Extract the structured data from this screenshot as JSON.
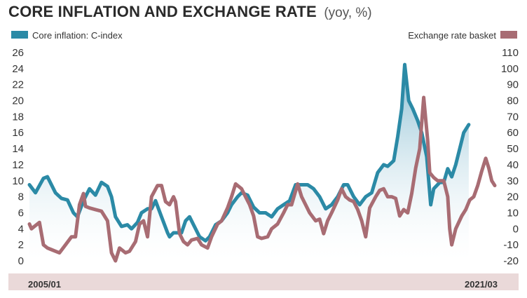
{
  "title": {
    "main": "CORE INFLATION AND EXCHANGE RATE",
    "unit": "(yoy, %)"
  },
  "colors": {
    "core": "#2b8aa6",
    "fx": "#a86c73",
    "area": "#a9d0e0",
    "xband": "#ead9d9"
  },
  "chart_data": {
    "type": "line",
    "title": "CORE INFLATION AND EXCHANGE RATE",
    "subtitle": "(yoy, %)",
    "x_range": [
      "2005/01",
      "2021/03"
    ],
    "x_tick_labels": [
      "2005/01",
      "2021/03"
    ],
    "left_axis": {
      "ylim": [
        0,
        26
      ],
      "ticks": [
        0,
        2,
        4,
        6,
        8,
        10,
        12,
        14,
        16,
        18,
        20,
        22,
        24,
        26
      ]
    },
    "right_axis": {
      "ylim": [
        -20,
        110
      ],
      "ticks": [
        -20,
        -10,
        0,
        10,
        20,
        30,
        40,
        50,
        60,
        70,
        80,
        90,
        100,
        110
      ]
    },
    "legend": [
      {
        "name": "Core inflation: C-index",
        "placement": "top-left"
      },
      {
        "name": "Exchange rate basket",
        "placement": "top-right"
      }
    ],
    "series": [
      {
        "name": "Core inflation: C-index",
        "axis": "left",
        "style": "line with shaded area",
        "points": [
          [
            2005.0,
            9.5
          ],
          [
            2005.3,
            8.5
          ],
          [
            2005.7,
            10.3
          ],
          [
            2005.9,
            10.5
          ],
          [
            2006.3,
            8.5
          ],
          [
            2006.6,
            7.8
          ],
          [
            2006.9,
            7.6
          ],
          [
            2007.2,
            6.0
          ],
          [
            2007.4,
            5.5
          ],
          [
            2007.7,
            7.5
          ],
          [
            2008.0,
            9.0
          ],
          [
            2008.3,
            8.2
          ],
          [
            2008.6,
            9.8
          ],
          [
            2008.9,
            9.3
          ],
          [
            2009.1,
            8.0
          ],
          [
            2009.3,
            5.5
          ],
          [
            2009.6,
            4.3
          ],
          [
            2009.9,
            4.5
          ],
          [
            2010.1,
            4.0
          ],
          [
            2010.4,
            4.8
          ],
          [
            2010.6,
            6.0
          ],
          [
            2010.9,
            6.5
          ],
          [
            2011.1,
            6.5
          ],
          [
            2011.3,
            7.5
          ],
          [
            2011.6,
            5.5
          ],
          [
            2011.9,
            3.5
          ],
          [
            2012.0,
            3.0
          ],
          [
            2012.2,
            3.5
          ],
          [
            2012.4,
            3.5
          ],
          [
            2012.6,
            3.5
          ],
          [
            2012.8,
            5.0
          ],
          [
            2013.0,
            5.5
          ],
          [
            2013.2,
            4.5
          ],
          [
            2013.5,
            3.0
          ],
          [
            2013.8,
            2.5
          ],
          [
            2014.0,
            3.0
          ],
          [
            2014.3,
            4.5
          ],
          [
            2014.6,
            5.0
          ],
          [
            2014.9,
            6.0
          ],
          [
            2015.1,
            7.0
          ],
          [
            2015.4,
            8.0
          ],
          [
            2015.6,
            8.5
          ],
          [
            2015.9,
            8.2
          ],
          [
            2016.2,
            6.7
          ],
          [
            2016.5,
            6.0
          ],
          [
            2016.8,
            6.0
          ],
          [
            2017.1,
            5.5
          ],
          [
            2017.4,
            6.5
          ],
          [
            2017.7,
            7.0
          ],
          [
            2018.0,
            7.5
          ],
          [
            2018.3,
            9.5
          ],
          [
            2018.6,
            9.5
          ],
          [
            2018.9,
            9.5
          ],
          [
            2019.2,
            9.0
          ],
          [
            2019.5,
            8.0
          ],
          [
            2019.8,
            6.5
          ],
          [
            2020.1,
            7.0
          ],
          [
            2020.4,
            8.0
          ],
          [
            2020.7,
            9.5
          ],
          [
            2020.9,
            9.5
          ],
          [
            2021.2,
            8.0
          ],
          [
            2021.5,
            7.0
          ],
          [
            2021.8,
            8.0
          ],
          [
            2022.1,
            8.5
          ],
          [
            2022.4,
            11.0
          ],
          [
            2022.7,
            12.0
          ],
          [
            2022.9,
            11.8
          ],
          [
            2023.2,
            12.5
          ],
          [
            2023.4,
            15.5
          ],
          [
            2023.6,
            19.0
          ],
          [
            2023.75,
            24.5
          ],
          [
            2023.95,
            20.0
          ],
          [
            2024.15,
            19.0
          ],
          [
            2024.4,
            17.5
          ],
          [
            2024.6,
            16.0
          ],
          [
            2024.85,
            13.0
          ],
          [
            2025.05,
            7.0
          ],
          [
            2025.2,
            9.0
          ],
          [
            2025.5,
            9.8
          ],
          [
            2025.7,
            9.8
          ],
          [
            2025.9,
            11.5
          ],
          [
            2026.1,
            10.5
          ],
          [
            2026.3,
            12.0
          ],
          [
            2026.5,
            14.0
          ],
          [
            2026.7,
            16.0
          ],
          [
            2026.95,
            17.0
          ]
        ]
      },
      {
        "name": "Exchange rate basket",
        "axis": "right",
        "style": "line",
        "points": [
          [
            2005.0,
            3.0
          ],
          [
            2005.1,
            0.0
          ],
          [
            2005.3,
            2.0
          ],
          [
            2005.5,
            4.0
          ],
          [
            2005.7,
            -10.0
          ],
          [
            2005.9,
            -12.0
          ],
          [
            2006.1,
            -13.0
          ],
          [
            2006.3,
            -14.0
          ],
          [
            2006.5,
            -15.0
          ],
          [
            2006.8,
            -10.0
          ],
          [
            2007.1,
            -5.0
          ],
          [
            2007.3,
            -5.0
          ],
          [
            2007.5,
            15.0
          ],
          [
            2007.7,
            22.0
          ],
          [
            2007.8,
            14.0
          ],
          [
            2008.0,
            13.0
          ],
          [
            2008.3,
            12.0
          ],
          [
            2008.6,
            11.0
          ],
          [
            2008.9,
            5.0
          ],
          [
            2009.1,
            -15.0
          ],
          [
            2009.3,
            -20.0
          ],
          [
            2009.5,
            -12.0
          ],
          [
            2009.8,
            -15.0
          ],
          [
            2010.0,
            -14.0
          ],
          [
            2010.3,
            -8.0
          ],
          [
            2010.5,
            3.0
          ],
          [
            2010.7,
            5.0
          ],
          [
            2010.9,
            -5.0
          ],
          [
            2011.1,
            20.0
          ],
          [
            2011.4,
            27.0
          ],
          [
            2011.6,
            27.0
          ],
          [
            2011.8,
            17.0
          ],
          [
            2012.0,
            15.0
          ],
          [
            2012.2,
            20.0
          ],
          [
            2012.3,
            17.0
          ],
          [
            2012.5,
            -3.0
          ],
          [
            2012.7,
            -8.0
          ],
          [
            2012.9,
            -10.0
          ],
          [
            2013.1,
            -7.0
          ],
          [
            2013.4,
            -6.0
          ],
          [
            2013.6,
            -10.0
          ],
          [
            2013.9,
            -12.0
          ],
          [
            2014.1,
            -5.0
          ],
          [
            2014.4,
            3.0
          ],
          [
            2014.6,
            5.0
          ],
          [
            2014.9,
            13.0
          ],
          [
            2015.1,
            20.0
          ],
          [
            2015.3,
            28.0
          ],
          [
            2015.6,
            25.0
          ],
          [
            2015.8,
            20.0
          ],
          [
            2016.0,
            15.0
          ],
          [
            2016.2,
            8.0
          ],
          [
            2016.4,
            -5.0
          ],
          [
            2016.6,
            -6.0
          ],
          [
            2016.9,
            -5.0
          ],
          [
            2017.1,
            0.0
          ],
          [
            2017.4,
            3.0
          ],
          [
            2017.7,
            10.0
          ],
          [
            2017.9,
            15.0
          ],
          [
            2018.1,
            15.0
          ],
          [
            2018.4,
            28.0
          ],
          [
            2018.6,
            20.0
          ],
          [
            2018.8,
            15.0
          ],
          [
            2019.0,
            10.0
          ],
          [
            2019.3,
            5.0
          ],
          [
            2019.5,
            6.0
          ],
          [
            2019.7,
            -3.0
          ],
          [
            2019.9,
            5.0
          ],
          [
            2020.1,
            10.0
          ],
          [
            2020.4,
            18.0
          ],
          [
            2020.6,
            25.0
          ],
          [
            2020.8,
            20.0
          ],
          [
            2021.0,
            18.0
          ],
          [
            2021.2,
            17.0
          ],
          [
            2021.4,
            12.0
          ],
          [
            2021.6,
            5.0
          ],
          [
            2021.8,
            -5.0
          ],
          [
            2022.0,
            13.0
          ],
          [
            2022.3,
            20.0
          ],
          [
            2022.5,
            24.0
          ],
          [
            2022.7,
            25.0
          ],
          [
            2022.9,
            20.0
          ],
          [
            2023.1,
            20.0
          ],
          [
            2023.3,
            19.0
          ],
          [
            2023.5,
            8.0
          ],
          [
            2023.7,
            12.0
          ],
          [
            2023.9,
            10.0
          ],
          [
            2024.1,
            22.0
          ],
          [
            2024.3,
            38.0
          ],
          [
            2024.5,
            50.0
          ],
          [
            2024.7,
            82.0
          ],
          [
            2024.9,
            55.0
          ],
          [
            2025.0,
            35.0
          ],
          [
            2025.2,
            32.0
          ],
          [
            2025.4,
            30.0
          ],
          [
            2025.7,
            30.0
          ],
          [
            2025.9,
            20.0
          ],
          [
            2026.0,
            0.0
          ],
          [
            2026.1,
            -10.0
          ],
          [
            2026.3,
            0.0
          ],
          [
            2026.6,
            8.0
          ],
          [
            2026.8,
            12.0
          ],
          [
            2027.0,
            18.0
          ],
          [
            2027.2,
            20.0
          ],
          [
            2027.4,
            27.0
          ],
          [
            2027.6,
            36.0
          ],
          [
            2027.8,
            44.0
          ],
          [
            2027.95,
            38.0
          ],
          [
            2028.1,
            30.0
          ],
          [
            2028.25,
            27.0
          ]
        ]
      }
    ]
  }
}
